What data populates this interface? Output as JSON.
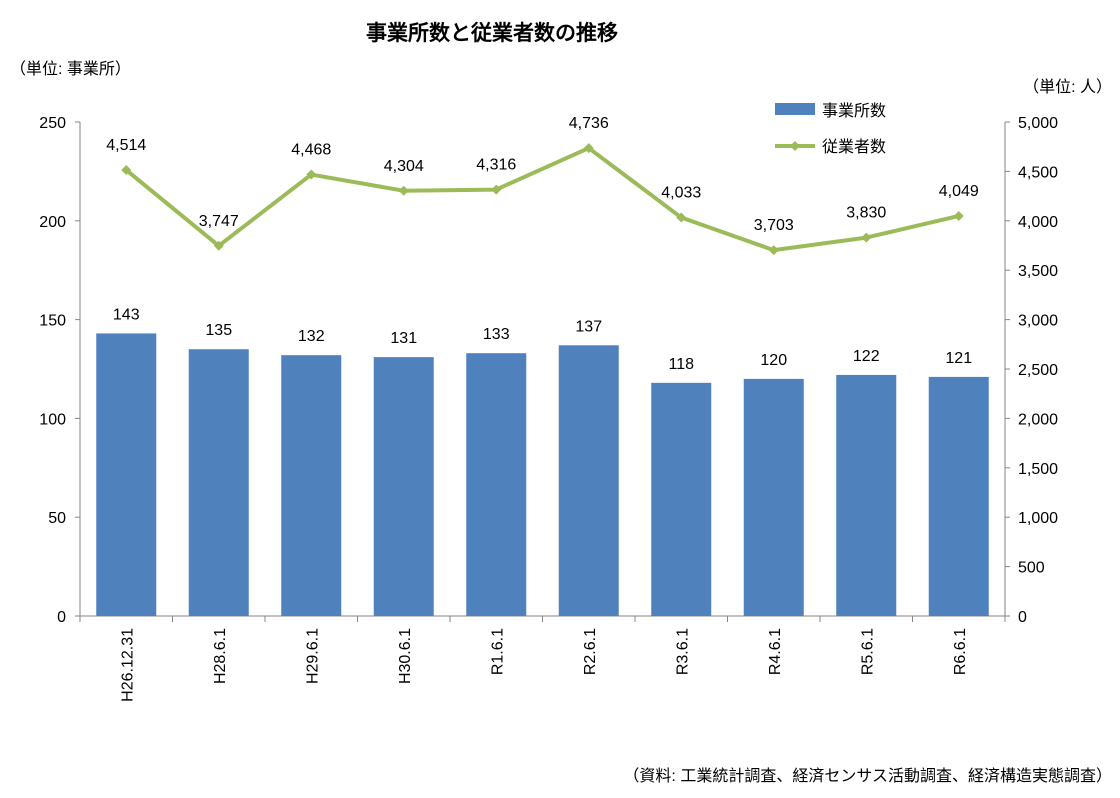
{
  "chart_data": {
    "type": "bar+line",
    "title": "事業所数と従業者数の推移",
    "ylabel_left": "（単位: 事業所）",
    "ylabel_right": "（単位: 人）",
    "source": "（資料: 工業統計調査、経済センサス活動調査、経済構造実態調査）",
    "categories": [
      "H26.12.31",
      "H28.6.1",
      "H29.6.1",
      "H30.6.1",
      "R1.6.1",
      "R2.6.1",
      "R3.6.1",
      "R4.6.1",
      "R5.6.1",
      "R6.6.1"
    ],
    "series": [
      {
        "name": "事業所数",
        "type": "bar",
        "axis": "left",
        "color": "#4f81bd",
        "values": [
          143,
          135,
          132,
          131,
          133,
          137,
          118,
          120,
          122,
          121
        ],
        "labels": [
          "143",
          "135",
          "132",
          "131",
          "133",
          "137",
          "118",
          "120",
          "122",
          "121"
        ]
      },
      {
        "name": "従業者数",
        "type": "line",
        "axis": "right",
        "color": "#9bbb59",
        "values": [
          4514,
          3747,
          4468,
          4304,
          4316,
          4736,
          4033,
          3703,
          3830,
          4049
        ],
        "labels": [
          "4,514",
          "3,747",
          "4,468",
          "4,304",
          "4,316",
          "4,736",
          "4,033",
          "3,703",
          "3,830",
          "4,049"
        ]
      }
    ],
    "ylim_left": [
      0,
      250
    ],
    "ylim_right": [
      0,
      5000
    ],
    "yticks_left": [
      "0",
      "50",
      "100",
      "150",
      "200",
      "250"
    ],
    "yticks_right": [
      "0",
      "500",
      "1,000",
      "1,500",
      "2,000",
      "2,500",
      "3,000",
      "3,500",
      "4,000",
      "4,500",
      "5,000"
    ],
    "grid": false,
    "legend_position": "top-right"
  }
}
